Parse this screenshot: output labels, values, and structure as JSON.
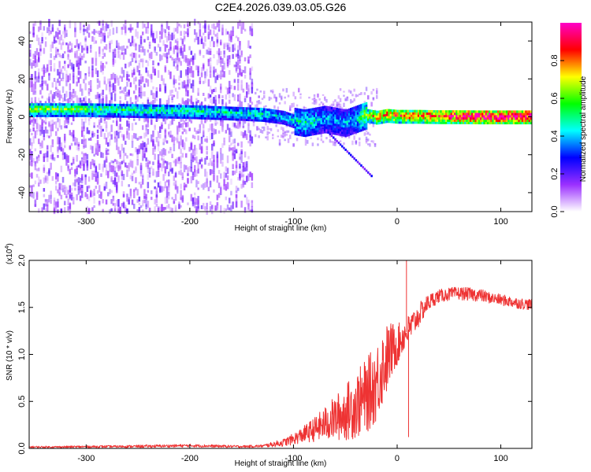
{
  "title": "C2E4.2026.039.03.05.G26",
  "chart_data": [
    {
      "type": "heatmap",
      "title": "C2E4.2026.039.03.05.G26",
      "xlabel": "Height of straight line (km)",
      "ylabel": "Frequency (Hz)",
      "xlim": [
        -355,
        130
      ],
      "ylim": [
        -50,
        50
      ],
      "x_ticks": [
        -300,
        -200,
        -100,
        0,
        100
      ],
      "x_tick_labels": [
        "-300",
        "-200",
        "-100",
        "0",
        "100"
      ],
      "y_ticks": [
        -40,
        -20,
        0,
        20,
        40
      ],
      "y_tick_labels": [
        "-40",
        "-20",
        "0",
        "20",
        "40"
      ],
      "colorbar": {
        "label": "Normalized spectral amplitude",
        "range": [
          0,
          1
        ],
        "ticks": [
          0.0,
          0.2,
          0.4,
          0.6,
          0.8
        ],
        "tick_labels": [
          "0.0",
          "0.2",
          "0.4",
          "0.6",
          "0.8"
        ],
        "colormap": [
          "#ffffff",
          "#9b30ff",
          "#0000ff",
          "#00ffff",
          "#00ff00",
          "#ffff00",
          "#ff0000",
          "#ff00c8"
        ]
      },
      "ridge": {
        "x": [
          -340,
          -300,
          -250,
          -200,
          -150,
          -130,
          -110,
          -100,
          -90,
          -80,
          -70,
          -60,
          -50,
          -40,
          -30,
          -20,
          -10,
          0,
          20,
          40,
          60,
          80,
          100,
          125
        ],
        "frequency": [
          4,
          4,
          3.5,
          3,
          2,
          1.5,
          0,
          -2,
          -3,
          -2,
          -1,
          -2,
          -3,
          -1,
          1,
          0,
          1,
          0.5,
          0.5,
          0.3,
          0.3,
          0.2,
          0.2,
          0.2
        ],
        "amplitude": [
          0.55,
          0.5,
          0.45,
          0.45,
          0.4,
          0.45,
          0.35,
          0.4,
          0.45,
          0.4,
          0.35,
          0.35,
          0.35,
          0.4,
          0.6,
          0.7,
          0.75,
          0.7,
          0.75,
          0.8,
          0.85,
          0.9,
          0.9,
          0.9
        ]
      },
      "noise_region": {
        "x_from": -355,
        "x_to": -140,
        "amplitude": [
          0.05,
          0.2
        ]
      },
      "grid": false
    },
    {
      "type": "line",
      "xlabel": "Height of straight line (km)",
      "ylabel": "SNR (10 * v/v)",
      "y_multiplier": "(x10",
      "y_multiplier_exponent": "4",
      "y_multiplier_close": ")",
      "xlim": [
        -355,
        130
      ],
      "ylim": [
        0,
        20000
      ],
      "x_ticks": [
        -300,
        -200,
        -100,
        0,
        100
      ],
      "x_tick_labels": [
        "-300",
        "-200",
        "-100",
        "0",
        "100"
      ],
      "y_ticks": [
        0,
        5000,
        10000,
        15000,
        20000
      ],
      "y_tick_labels": [
        "0.0",
        "0.5",
        "1.0",
        "1.5",
        "2.0"
      ],
      "color": "#ee3333",
      "series": [
        {
          "x": [
            -355,
            -330,
            -300,
            -270,
            -240,
            -210,
            -200,
            -180,
            -150,
            -130,
            -110,
            -100,
            -90,
            -80,
            -70,
            -60,
            -50,
            -40,
            -30,
            -20,
            -15,
            -10,
            -5,
            0,
            5,
            10,
            15,
            20,
            25,
            30,
            35,
            40,
            50,
            60,
            70,
            80,
            90,
            100,
            110,
            120,
            130
          ],
          "values": [
            150,
            150,
            180,
            200,
            230,
            280,
            300,
            250,
            200,
            250,
            600,
            1000,
            1500,
            2000,
            2600,
            3200,
            3800,
            4600,
            5500,
            7000,
            8500,
            9500,
            10500,
            11000,
            11800,
            12500,
            13200,
            14000,
            14800,
            15500,
            15900,
            16200,
            16400,
            16500,
            16400,
            16300,
            16000,
            15800,
            15600,
            15400,
            15300
          ],
          "noise": [
            100,
            100,
            120,
            120,
            150,
            150,
            160,
            150,
            120,
            150,
            400,
            600,
            900,
            1300,
            1800,
            2400,
            3000,
            3600,
            4000,
            4200,
            4200,
            3800,
            3000,
            2200,
            1800,
            1600,
            1500,
            1300,
            1100,
            900,
            800,
            700,
            700,
            700,
            700,
            700,
            600,
            600,
            600,
            600,
            600
          ]
        }
      ],
      "spikes": [
        {
          "x": 9,
          "y_max": 20000
        },
        {
          "x": 11,
          "y_min": 1200
        }
      ],
      "grid": false
    }
  ]
}
